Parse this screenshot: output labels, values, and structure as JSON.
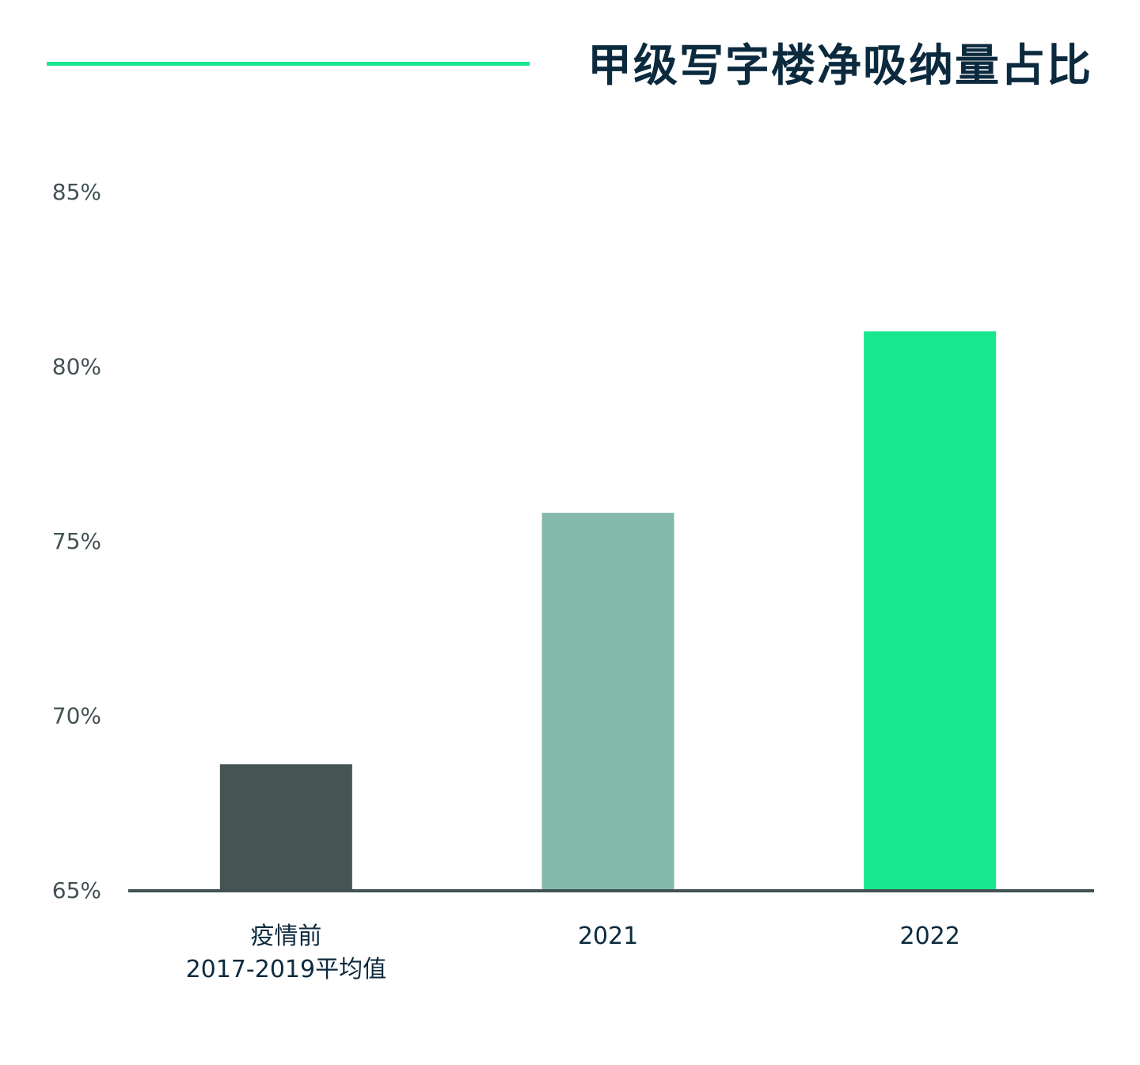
{
  "title": "甲级写字楼净吸纳量占比",
  "colors": {
    "accent": "#17e88f",
    "title": "#0c2a3e",
    "axis": "#435254",
    "tick_text": "#435254"
  },
  "chart_data": {
    "type": "bar",
    "title": "甲级写字楼净吸纳量占比",
    "categories": [
      "疫情前\n2017-2019平均值",
      "2021",
      "2022"
    ],
    "values": [
      68.6,
      75.8,
      81.0
    ],
    "bar_colors": [
      "#465454",
      "#83b9ab",
      "#17e88f"
    ],
    "unit": "%",
    "ylim": [
      65,
      85
    ],
    "yticks": [
      65,
      70,
      75,
      80,
      85
    ],
    "ytick_labels": [
      "65%",
      "70%",
      "75%",
      "80%",
      "85%"
    ],
    "grid": false,
    "legend": "none"
  }
}
